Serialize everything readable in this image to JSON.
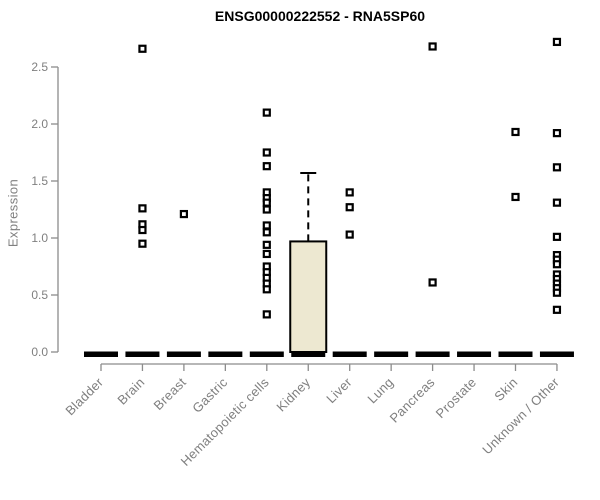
{
  "title": "ENSG00000222552 - RNA5SP60",
  "colors": {
    "box_fill": "#EDE8D1",
    "box_stroke": "#000000",
    "median": "#000000",
    "point": "#000000",
    "axis": "#8c8c8c",
    "tick_text": "#7f7f7f",
    "title_text": "#000000"
  },
  "chart_data": {
    "type": "boxplot",
    "title": "ENSG00000222552 - RNA5SP60",
    "xlabel": "",
    "ylabel": "Expression",
    "ylim": [
      0,
      2.75
    ],
    "yticks": [
      0,
      0.5,
      1,
      1.5,
      2,
      2.5
    ],
    "grid": false,
    "legend": false,
    "categories": [
      "Bladder",
      "Brain",
      "Breast",
      "Gastric",
      "Hematopoietic cells",
      "Kidney",
      "Liver",
      "Lung",
      "Pancreas",
      "Prostate",
      "Skin",
      "Unknown / Other"
    ],
    "series": [
      {
        "name": "Bladder",
        "q1": 0,
        "median": 0,
        "q3": 0,
        "whisker_low": 0,
        "whisker_high": 0,
        "outliers": []
      },
      {
        "name": "Brain",
        "q1": 0,
        "median": 0,
        "q3": 0,
        "whisker_low": 0,
        "whisker_high": 0,
        "outliers": [
          2.66,
          1.26,
          1.12,
          1.07,
          0.95
        ]
      },
      {
        "name": "Breast",
        "q1": 0,
        "median": 0,
        "q3": 0,
        "whisker_low": 0,
        "whisker_high": 0,
        "outliers": [
          1.21
        ]
      },
      {
        "name": "Gastric",
        "q1": 0,
        "median": 0,
        "q3": 0,
        "whisker_low": 0,
        "whisker_high": 0,
        "outliers": []
      },
      {
        "name": "Hematopoietic cells",
        "q1": 0,
        "median": 0,
        "q3": 0,
        "whisker_low": 0,
        "whisker_high": 0,
        "outliers": [
          2.1,
          1.75,
          1.63,
          1.4,
          1.35,
          1.31,
          1.25,
          1.11,
          1.05,
          0.94,
          0.86,
          0.75,
          0.7,
          0.65,
          0.6,
          0.55,
          0.33
        ]
      },
      {
        "name": "Kidney",
        "q1": 0,
        "median": 0,
        "q3": 0.97,
        "whisker_low": 0,
        "whisker_high": 1.57,
        "outliers": []
      },
      {
        "name": "Liver",
        "q1": 0,
        "median": 0,
        "q3": 0,
        "whisker_low": 0,
        "whisker_high": 0,
        "outliers": [
          1.4,
          1.27,
          1.03
        ]
      },
      {
        "name": "Lung",
        "q1": 0,
        "median": 0,
        "q3": 0,
        "whisker_low": 0,
        "whisker_high": 0,
        "outliers": []
      },
      {
        "name": "Pancreas",
        "q1": 0,
        "median": 0,
        "q3": 0,
        "whisker_low": 0,
        "whisker_high": 0,
        "outliers": [
          2.68,
          0.61
        ]
      },
      {
        "name": "Prostate",
        "q1": 0,
        "median": 0,
        "q3": 0,
        "whisker_low": 0,
        "whisker_high": 0,
        "outliers": []
      },
      {
        "name": "Skin",
        "q1": 0,
        "median": 0,
        "q3": 0,
        "whisker_low": 0,
        "whisker_high": 0,
        "outliers": [
          1.93,
          1.36
        ]
      },
      {
        "name": "Unknown / Other",
        "q1": 0,
        "median": 0,
        "q3": 0,
        "whisker_low": 0,
        "whisker_high": 0,
        "outliers": [
          2.72,
          1.92,
          1.62,
          1.31,
          1.01,
          0.85,
          0.81,
          0.77,
          0.68,
          0.64,
          0.6,
          0.56,
          0.52,
          0.37
        ]
      }
    ]
  }
}
